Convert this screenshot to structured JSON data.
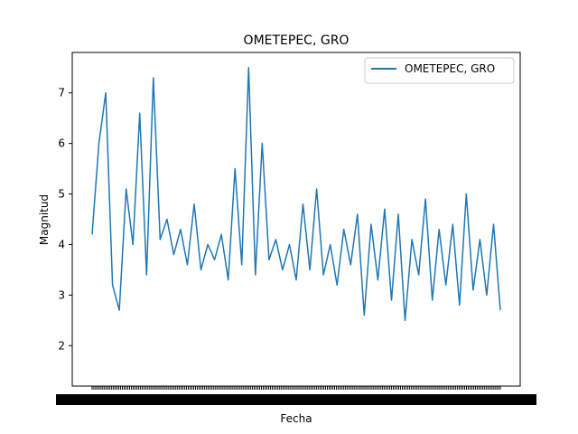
{
  "chart_data": {
    "type": "line",
    "title": "OMETEPEC, GRO",
    "xlabel": "Fecha",
    "ylabel": "Magnitud",
    "ylim": [
      1.2,
      7.8
    ],
    "yticks": [
      2,
      3,
      4,
      5,
      6,
      7
    ],
    "grid": false,
    "legend_position": "top-right",
    "series": [
      {
        "name": "OMETEPEC, GRO",
        "color": "#1f77b4",
        "x": [
          0,
          1,
          2,
          3,
          4,
          5,
          6,
          7,
          8,
          9,
          10,
          11,
          12,
          13,
          14,
          15,
          16,
          17,
          18,
          19,
          20,
          21,
          22,
          23,
          24,
          25,
          26,
          27,
          28,
          29,
          30,
          31,
          32,
          33,
          34,
          35,
          36,
          37,
          38,
          39,
          40,
          41,
          42,
          43,
          44,
          45,
          46,
          47,
          48,
          49,
          50,
          51,
          52,
          53,
          54,
          55,
          56,
          57,
          58,
          59,
          60
        ],
        "values": [
          4.2,
          6.0,
          7.0,
          3.2,
          2.7,
          5.1,
          4.0,
          6.6,
          3.4,
          7.3,
          4.1,
          4.5,
          3.8,
          4.3,
          3.6,
          4.8,
          3.5,
          4.0,
          3.7,
          4.2,
          3.3,
          5.5,
          3.6,
          7.5,
          3.4,
          6.0,
          3.7,
          4.1,
          3.5,
          4.0,
          3.3,
          4.8,
          3.5,
          5.1,
          3.4,
          4.0,
          3.2,
          4.3,
          3.6,
          4.6,
          2.6,
          4.4,
          3.3,
          4.7,
          2.9,
          4.6,
          2.5,
          4.1,
          3.4,
          4.9,
          2.9,
          4.3,
          3.2,
          4.4,
          2.8,
          5.0,
          3.1,
          4.1,
          3.0,
          4.4,
          2.7
        ]
      }
    ]
  }
}
